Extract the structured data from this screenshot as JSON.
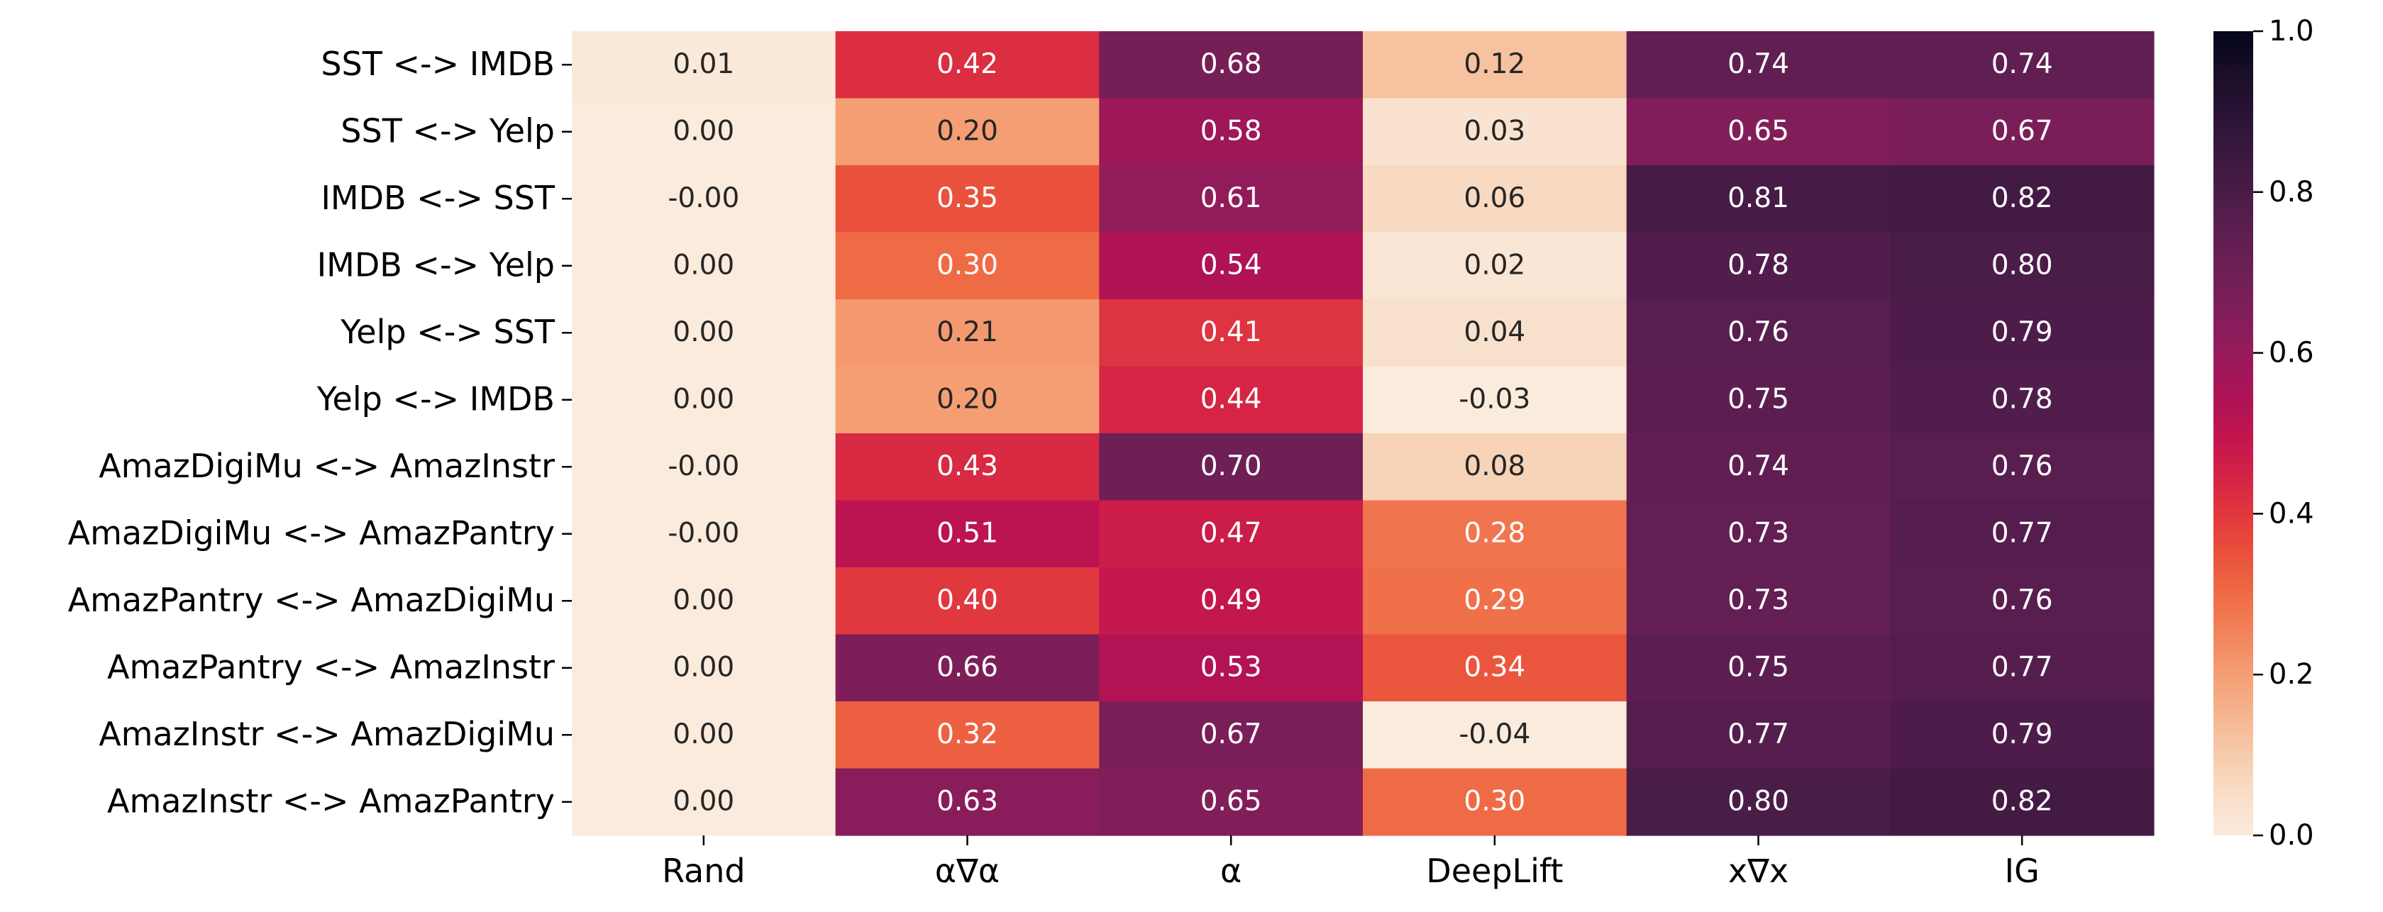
{
  "chart_data": {
    "type": "heatmap",
    "title": "",
    "xlabel": "",
    "ylabel": "",
    "columns": [
      "Rand",
      "α∇α",
      "α",
      "DeepLift",
      "x∇x",
      "IG"
    ],
    "rows": [
      "SST <-> IMDB",
      "SST <-> Yelp",
      "IMDB <-> SST",
      "IMDB <-> Yelp",
      "Yelp <-> SST",
      "Yelp <-> IMDB",
      "AmazDigiMu <-> AmazInstr",
      "AmazDigiMu <-> AmazPantry",
      "AmazPantry <-> AmazDigiMu",
      "AmazPantry <-> AmazInstr",
      "AmazInstr <-> AmazDigiMu",
      "AmazInstr <-> AmazPantry"
    ],
    "values": [
      [
        0.01,
        0.42,
        0.68,
        0.12,
        0.74,
        0.74
      ],
      [
        0.0,
        0.2,
        0.58,
        0.03,
        0.65,
        0.67
      ],
      [
        -0.001,
        0.35,
        0.61,
        0.06,
        0.81,
        0.82
      ],
      [
        0.0,
        0.3,
        0.54,
        0.02,
        0.78,
        0.8
      ],
      [
        0.0,
        0.21,
        0.41,
        0.04,
        0.76,
        0.79
      ],
      [
        0.0,
        0.2,
        0.44,
        -0.03,
        0.75,
        0.78
      ],
      [
        -0.001,
        0.43,
        0.7,
        0.08,
        0.74,
        0.76
      ],
      [
        -0.001,
        0.51,
        0.47,
        0.28,
        0.73,
        0.77
      ],
      [
        0.0,
        0.4,
        0.49,
        0.29,
        0.73,
        0.76
      ],
      [
        0.0,
        0.66,
        0.53,
        0.34,
        0.75,
        0.77
      ],
      [
        0.0,
        0.32,
        0.67,
        -0.04,
        0.77,
        0.79
      ],
      [
        0.0,
        0.63,
        0.65,
        0.3,
        0.8,
        0.82
      ]
    ],
    "annotations": [
      [
        "0.01",
        "0.42",
        "0.68",
        "0.12",
        "0.74",
        "0.74"
      ],
      [
        "0.00",
        "0.20",
        "0.58",
        "0.03",
        "0.65",
        "0.67"
      ],
      [
        "-0.00",
        "0.35",
        "0.61",
        "0.06",
        "0.81",
        "0.82"
      ],
      [
        "0.00",
        "0.30",
        "0.54",
        "0.02",
        "0.78",
        "0.80"
      ],
      [
        "0.00",
        "0.21",
        "0.41",
        "0.04",
        "0.76",
        "0.79"
      ],
      [
        "0.00",
        "0.20",
        "0.44",
        "-0.03",
        "0.75",
        "0.78"
      ],
      [
        "-0.00",
        "0.43",
        "0.70",
        "0.08",
        "0.74",
        "0.76"
      ],
      [
        "-0.00",
        "0.51",
        "0.47",
        "0.28",
        "0.73",
        "0.77"
      ],
      [
        "0.00",
        "0.40",
        "0.49",
        "0.29",
        "0.73",
        "0.76"
      ],
      [
        "0.00",
        "0.66",
        "0.53",
        "0.34",
        "0.75",
        "0.77"
      ],
      [
        "0.00",
        "0.32",
        "0.67",
        "-0.04",
        "0.77",
        "0.79"
      ],
      [
        "0.00",
        "0.63",
        "0.65",
        "0.30",
        "0.80",
        "0.82"
      ]
    ],
    "colormap": "rocket_r",
    "vmin": 0.0,
    "vmax": 1.0,
    "colorbar": {
      "ticks": [
        0.0,
        0.2,
        0.4,
        0.6,
        0.8,
        1.0
      ],
      "tick_labels": [
        "0.0",
        "0.2",
        "0.4",
        "0.6",
        "0.8",
        "1.0"
      ],
      "placement": "right"
    },
    "text_color_dark": "#262626",
    "text_color_light": "#ffffff"
  }
}
